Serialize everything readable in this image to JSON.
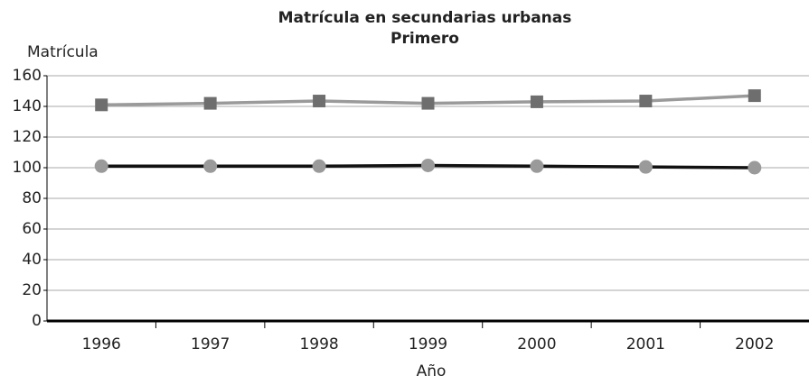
{
  "chart_data": {
    "type": "line",
    "title": "Matrícula en secundarias urbanas",
    "subtitle": "Primero",
    "y_label": "Matrícula",
    "x_label": "Año",
    "categories": [
      "1996",
      "1997",
      "1998",
      "1999",
      "2000",
      "2001",
      "2002"
    ],
    "series": [
      {
        "color": "#9a9a9a",
        "marker": "square",
        "marker_color": "#6e6e6e",
        "values": [
          141,
          142,
          143.5,
          142,
          143,
          143.5,
          147
        ]
      },
      {
        "color": "#111111",
        "marker": "circle",
        "marker_color": "#9a9a9a",
        "values": [
          101,
          101,
          101,
          101.5,
          101,
          100.5,
          100
        ]
      }
    ],
    "ylim": [
      0,
      160
    ],
    "yticks": [
      0,
      20,
      40,
      60,
      80,
      100,
      120,
      140,
      160
    ],
    "grid": true
  }
}
